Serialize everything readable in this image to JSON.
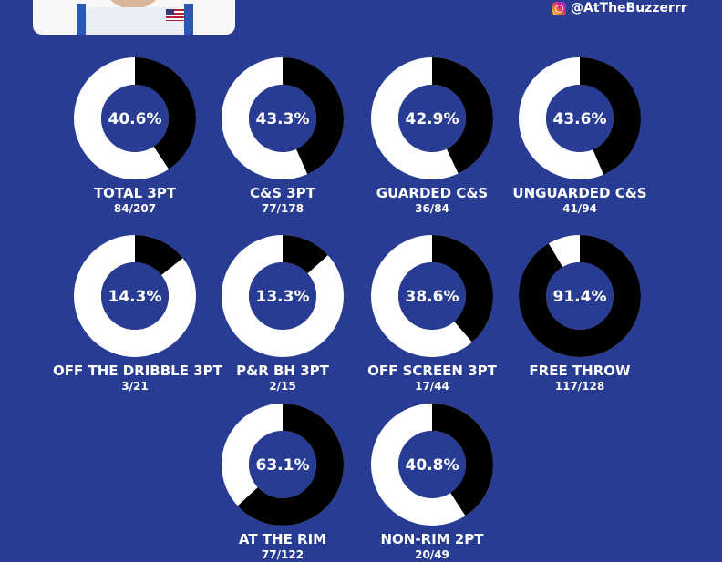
{
  "header": {
    "handle": "@AtTheBuzzerrr",
    "handle_icon": "instagram-icon"
  },
  "colors": {
    "background": "#283c94",
    "made": "#000000",
    "remaining": "#ffffff",
    "inner": "#283c94"
  },
  "chart_data": [
    {
      "type": "pie",
      "label": "TOTAL 3PT",
      "percent_text": "40.6%",
      "value": 40.6,
      "made_attempts": "84/207"
    },
    {
      "type": "pie",
      "label": "C&S 3PT",
      "percent_text": "43.3%",
      "value": 43.3,
      "made_attempts": "77/178"
    },
    {
      "type": "pie",
      "label": "GUARDED C&S",
      "percent_text": "42.9%",
      "value": 42.9,
      "made_attempts": "36/84"
    },
    {
      "type": "pie",
      "label": "UNGUARDED C&S",
      "percent_text": "43.6%",
      "value": 43.6,
      "made_attempts": "41/94"
    },
    {
      "type": "pie",
      "label": "OFF THE DRIBBLE 3PT",
      "percent_text": "14.3%",
      "value": 14.3,
      "made_attempts": "3/21"
    },
    {
      "type": "pie",
      "label": "P&R BH 3PT",
      "percent_text": "13.3%",
      "value": 13.3,
      "made_attempts": "2/15"
    },
    {
      "type": "pie",
      "label": "OFF SCREEN 3PT",
      "percent_text": "38.6%",
      "value": 38.6,
      "made_attempts": "17/44"
    },
    {
      "type": "pie",
      "label": "FREE THROW",
      "percent_text": "91.4%",
      "value": 91.4,
      "made_attempts": "117/128"
    },
    {
      "type": "pie",
      "label": "AT THE RIM",
      "percent_text": "63.1%",
      "value": 63.1,
      "made_attempts": "77/122"
    },
    {
      "type": "pie",
      "label": "NON-RIM 2PT",
      "percent_text": "40.8%",
      "value": 40.8,
      "made_attempts": "20/49"
    }
  ]
}
